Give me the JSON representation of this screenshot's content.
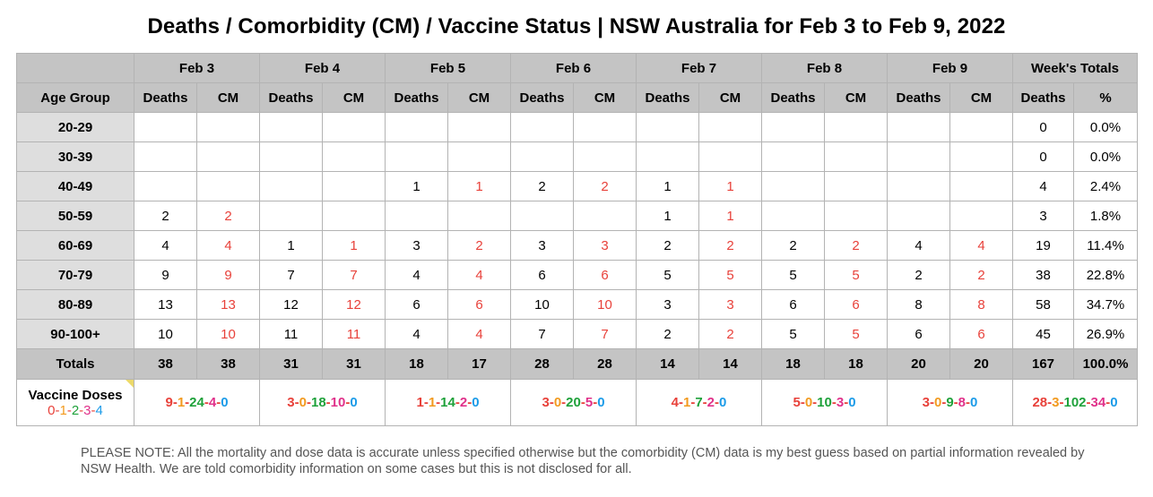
{
  "title": "Deaths / Comorbidity (CM) / Vaccine Status | NSW Australia for Feb 3 to Feb 9, 2022",
  "header": {
    "dates": [
      "Feb 3",
      "Feb 4",
      "Feb 5",
      "Feb 6",
      "Feb 7",
      "Feb 8",
      "Feb 9"
    ],
    "weeks_totals": "Week's Totals",
    "age_group": "Age Group",
    "deaths": "Deaths",
    "cm": "CM",
    "percent": "%"
  },
  "rows": [
    {
      "age": "20-29",
      "cells": [
        "",
        "",
        "",
        "",
        "",
        "",
        "",
        "",
        "",
        "",
        "",
        "",
        "",
        ""
      ],
      "total": "0",
      "pct": "0.0%"
    },
    {
      "age": "30-39",
      "cells": [
        "",
        "",
        "",
        "",
        "",
        "",
        "",
        "",
        "",
        "",
        "",
        "",
        "",
        ""
      ],
      "total": "0",
      "pct": "0.0%"
    },
    {
      "age": "40-49",
      "cells": [
        "",
        "",
        "",
        "",
        "1",
        "1",
        "2",
        "2",
        "1",
        "1",
        "",
        "",
        "",
        ""
      ],
      "total": "4",
      "pct": "2.4%"
    },
    {
      "age": "50-59",
      "cells": [
        "2",
        "2",
        "",
        "",
        "",
        "",
        "",
        "",
        "1",
        "1",
        "",
        "",
        "",
        ""
      ],
      "total": "3",
      "pct": "1.8%"
    },
    {
      "age": "60-69",
      "cells": [
        "4",
        "4",
        "1",
        "1",
        "3",
        "2",
        "3",
        "3",
        "2",
        "2",
        "2",
        "2",
        "4",
        "4"
      ],
      "total": "19",
      "pct": "11.4%"
    },
    {
      "age": "70-79",
      "cells": [
        "9",
        "9",
        "7",
        "7",
        "4",
        "4",
        "6",
        "6",
        "5",
        "5",
        "5",
        "5",
        "2",
        "2"
      ],
      "total": "38",
      "pct": "22.8%"
    },
    {
      "age": "80-89",
      "cells": [
        "13",
        "13",
        "12",
        "12",
        "6",
        "6",
        "10",
        "10",
        "3",
        "3",
        "6",
        "6",
        "8",
        "8"
      ],
      "total": "58",
      "pct": "34.7%"
    },
    {
      "age": "90-100+",
      "cells": [
        "10",
        "10",
        "11",
        "11",
        "4",
        "4",
        "7",
        "7",
        "2",
        "2",
        "5",
        "5",
        "6",
        "6"
      ],
      "total": "45",
      "pct": "26.9%"
    }
  ],
  "totals": {
    "label": "Totals",
    "cells": [
      "38",
      "38",
      "31",
      "31",
      "18",
      "17",
      "28",
      "28",
      "14",
      "14",
      "18",
      "18",
      "20",
      "20"
    ],
    "total": "167",
    "pct": "100.0%"
  },
  "vaccine": {
    "label": "Vaccine Doses",
    "legend": [
      "0",
      "1",
      "2",
      "3",
      "4"
    ],
    "days": [
      [
        "9",
        "1",
        "24",
        "4",
        "0"
      ],
      [
        "3",
        "0",
        "18",
        "10",
        "0"
      ],
      [
        "1",
        "1",
        "14",
        "2",
        "0"
      ],
      [
        "3",
        "0",
        "20",
        "5",
        "0"
      ],
      [
        "4",
        "1",
        "7",
        "2",
        "0"
      ],
      [
        "5",
        "0",
        "10",
        "3",
        "0"
      ],
      [
        "3",
        "0",
        "9",
        "8",
        "0"
      ]
    ],
    "total": [
      "28",
      "3",
      "102",
      "34",
      "0"
    ]
  },
  "note": "PLEASE NOTE: All the mortality and dose data is accurate unless specified otherwise but the comorbidity (CM) data is my best guess based on partial information revealed by NSW Health. We are told comorbidity information on some cases but this is not disclosed for all.",
  "colors": {
    "cm": "#e8413a",
    "dose0": "#e8413a",
    "dose1": "#f29a1f",
    "dose2": "#1ea13a",
    "dose3": "#e0318a",
    "dose4": "#1b9be8",
    "header_bg": "#c4c4c4",
    "age_bg": "#dedede"
  }
}
